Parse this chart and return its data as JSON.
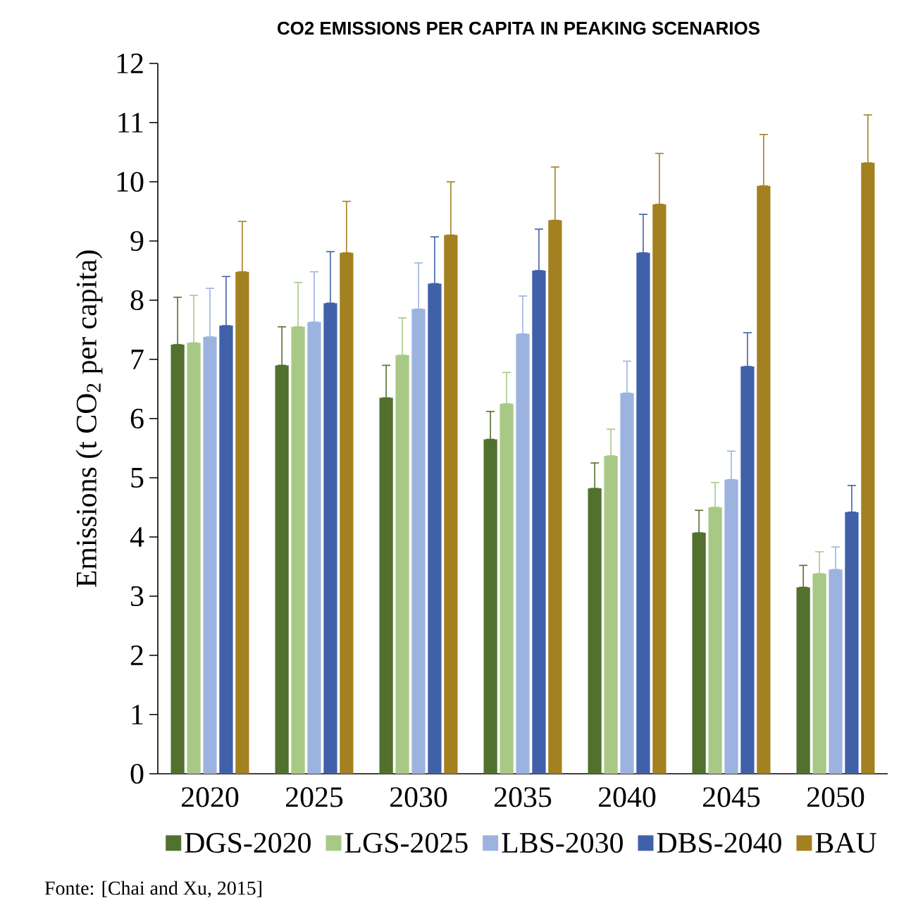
{
  "chart_data": {
    "type": "bar",
    "title": "CO2 EMISSIONS PER CAPITA IN PEAKING SCENARIOS",
    "ylabel": "Emissions (t CO$_{2}$ per capita)",
    "categories": [
      "2020",
      "2025",
      "2030",
      "2035",
      "2040",
      "2045",
      "2050"
    ],
    "series": [
      {
        "name": "DGS-2020",
        "color": "#52702e",
        "values": [
          7.25,
          6.9,
          6.35,
          5.65,
          4.82,
          4.07,
          3.15
        ],
        "errors": [
          [
            7.25,
            8.05
          ],
          [
            6.9,
            7.55
          ],
          [
            6.35,
            6.9
          ],
          [
            5.65,
            6.12
          ],
          [
            4.82,
            5.25
          ],
          [
            4.07,
            4.45
          ],
          [
            3.15,
            3.52
          ]
        ]
      },
      {
        "name": "LGS-2025",
        "color": "#a8c985",
        "values": [
          7.28,
          7.55,
          7.07,
          6.25,
          5.37,
          4.5,
          3.38
        ],
        "errors": [
          [
            7.28,
            8.08
          ],
          [
            7.55,
            8.3
          ],
          [
            7.07,
            7.7
          ],
          [
            6.25,
            6.78
          ],
          [
            5.37,
            5.82
          ],
          [
            4.5,
            4.92
          ],
          [
            3.38,
            3.75
          ]
        ]
      },
      {
        "name": "LBS-2030",
        "color": "#9db3df",
        "values": [
          7.38,
          7.63,
          7.85,
          7.43,
          6.43,
          4.97,
          3.45
        ],
        "errors": [
          [
            7.38,
            8.2
          ],
          [
            7.63,
            8.48
          ],
          [
            7.85,
            8.63
          ],
          [
            7.43,
            8.07
          ],
          [
            6.43,
            6.97
          ],
          [
            4.97,
            5.45
          ],
          [
            3.45,
            3.83
          ]
        ]
      },
      {
        "name": "DBS-2040",
        "color": "#4060aa",
        "values": [
          7.57,
          7.95,
          8.28,
          8.5,
          8.8,
          6.88,
          4.42
        ],
        "errors": [
          [
            7.57,
            8.4
          ],
          [
            7.95,
            8.82
          ],
          [
            8.28,
            9.07
          ],
          [
            8.5,
            9.2
          ],
          [
            8.8,
            9.45
          ],
          [
            6.88,
            7.45
          ],
          [
            4.42,
            4.87
          ]
        ]
      },
      {
        "name": "BAU",
        "color": "#a38020",
        "values": [
          8.48,
          8.8,
          9.1,
          9.35,
          9.62,
          9.93,
          10.32
        ],
        "errors": [
          [
            8.48,
            9.33
          ],
          [
            8.8,
            9.67
          ],
          [
            9.1,
            10.0
          ],
          [
            9.35,
            10.25
          ],
          [
            9.62,
            10.48
          ],
          [
            9.93,
            10.8
          ],
          [
            10.32,
            11.13
          ]
        ]
      }
    ],
    "ylim": [
      0,
      12
    ],
    "yticks": [
      0,
      1,
      2,
      3,
      4,
      5,
      6,
      7,
      8,
      9,
      10,
      11,
      12
    ],
    "legend": "bottom",
    "annotations": [
      "Fonte: [Chai and Xu, 2015]"
    ]
  }
}
